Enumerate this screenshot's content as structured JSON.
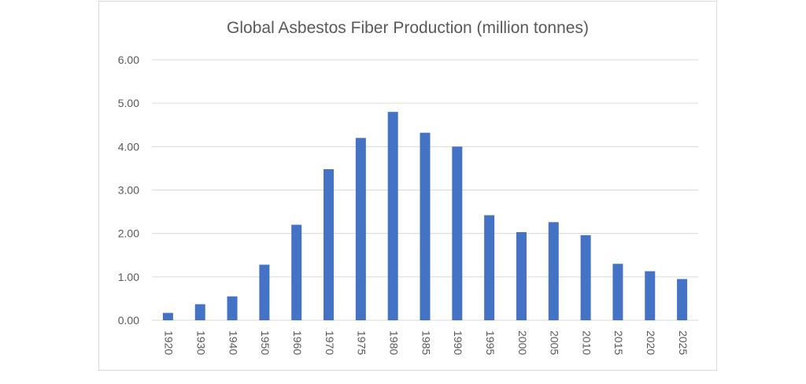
{
  "chart_data": {
    "type": "bar",
    "title": "Global Asbestos Fiber Production (million tonnes)",
    "xlabel": "",
    "ylabel": "",
    "categories": [
      "1920",
      "1930",
      "1940",
      "1950",
      "1960",
      "1970",
      "1975",
      "1980",
      "1985",
      "1990",
      "1995",
      "2000",
      "2005",
      "2010",
      "2015",
      "2020",
      "2025"
    ],
    "values": [
      0.17,
      0.37,
      0.55,
      1.28,
      2.2,
      3.48,
      4.2,
      4.8,
      4.32,
      4.0,
      2.42,
      2.03,
      2.26,
      1.96,
      1.3,
      1.13,
      0.95
    ],
    "ylim": [
      0,
      6
    ],
    "yticks": [
      "0.00",
      "1.00",
      "2.00",
      "3.00",
      "4.00",
      "5.00",
      "6.00"
    ],
    "grid": true,
    "legend": "none",
    "bar_color": "#4472c4",
    "grid_color": "#d9d9d9"
  }
}
